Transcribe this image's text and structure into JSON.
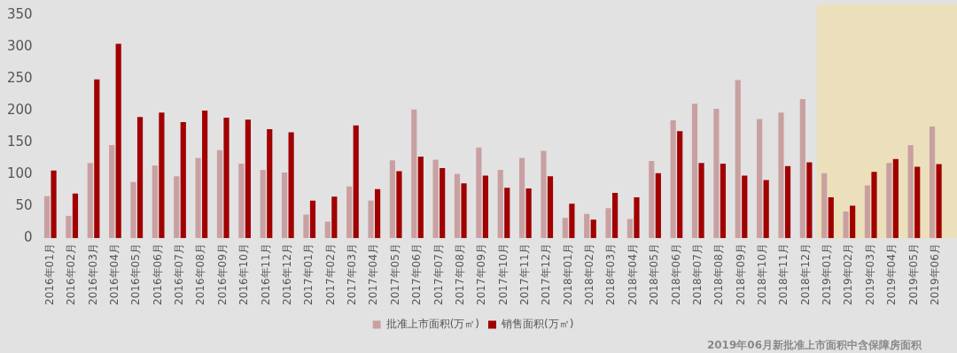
{
  "chart_data": {
    "type": "bar",
    "categories": [
      "2016年01月",
      "2016年02月",
      "2016年03月",
      "2016年04月",
      "2016年05月",
      "2016年06月",
      "2016年07月",
      "2016年08月",
      "2016年09月",
      "2016年10月",
      "2016年11月",
      "2016年12月",
      "2017年01月",
      "2017年02月",
      "2017年03月",
      "2017年04月",
      "2017年05月",
      "2017年06月",
      "2017年07月",
      "2017年08月",
      "2017年09月",
      "2017年10月",
      "2017年11月",
      "2017年12月",
      "2018年01月",
      "2018年02月",
      "2018年03月",
      "2018年04月",
      "2018年05月",
      "2018年06月",
      "2018年07月",
      "2018年08月",
      "2018年09月",
      "2018年10月",
      "2018年11月",
      "2018年12月",
      "2019年01月",
      "2019年02月",
      "2019年03月",
      "2019年04月",
      "2019年05月",
      "2019年06月"
    ],
    "series": [
      {
        "name": "批准上市面积(万㎡)",
        "color": "#c9a0a1",
        "values": [
          66,
          35,
          118,
          146,
          88,
          114,
          97,
          126,
          138,
          117,
          107,
          103,
          37,
          26,
          81,
          59,
          122,
          202,
          123,
          101,
          142,
          107,
          126,
          137,
          32,
          38,
          47,
          30,
          121,
          185,
          211,
          203,
          248,
          187,
          197,
          218,
          102,
          42,
          83,
          118,
          146,
          175
        ]
      },
      {
        "name": "销售面积(万㎡)",
        "color": "#a00000",
        "values": [
          106,
          70,
          249,
          305,
          190,
          197,
          182,
          200,
          189,
          186,
          171,
          166,
          59,
          65,
          177,
          77,
          105,
          128,
          110,
          86,
          98,
          79,
          78,
          97,
          54,
          29,
          71,
          64,
          102,
          168,
          118,
          117,
          98,
          91,
          113,
          119,
          64,
          51,
          104,
          124,
          112,
          116
        ]
      }
    ],
    "ylim": [
      0,
      350
    ],
    "yticks": [
      0,
      50,
      100,
      150,
      200,
      250,
      300,
      350
    ],
    "grid": false,
    "legend": "bottom",
    "bands": [
      {
        "axis": "x",
        "from": "2019年01月",
        "to": "2019年06月",
        "color": "#f0dfa0"
      }
    ],
    "annotations": [
      "2019年06月新批准上市面积中含保障房面积"
    ]
  }
}
